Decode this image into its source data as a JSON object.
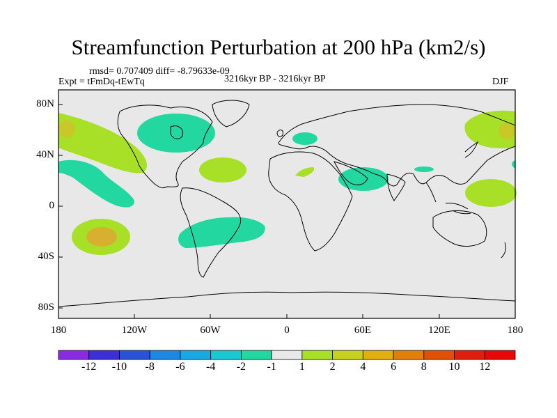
{
  "title": "Streamfunction Perturbation at 200 hPa (km2/s)",
  "stats_line": "rmsd= 0.707409 diff= -8.79633e-09",
  "experiment": "Expt = tFmDq-tEwTq",
  "period": "3216kyr BP - 3216kyr BP",
  "season": "DJF",
  "lat_ticks": [
    "80N",
    "40N",
    "0",
    "40S",
    "80S"
  ],
  "lon_ticks": [
    "180",
    "120W",
    "60W",
    "0",
    "60E",
    "120E",
    "180"
  ],
  "colorbar": {
    "labels": [
      "-12",
      "-10",
      "-8",
      "-6",
      "-4",
      "-2",
      "-1",
      "1",
      "2",
      "4",
      "6",
      "8",
      "10",
      "12"
    ],
    "colors": [
      "#8a2be2",
      "#3b2fd6",
      "#2a52d8",
      "#1e88e0",
      "#19a8e0",
      "#19c8d0",
      "#22d8a0",
      "#e8e8e8",
      "#a8e028",
      "#c8d020",
      "#e0b010",
      "#e08008",
      "#e05008",
      "#e01e10",
      "#e80808"
    ]
  },
  "palette": {
    "ocean_bg": "#e8e8e8",
    "neg_light": "#22d8a0",
    "pos_light": "#a8e028",
    "pos_mid": "#d8b030"
  }
}
